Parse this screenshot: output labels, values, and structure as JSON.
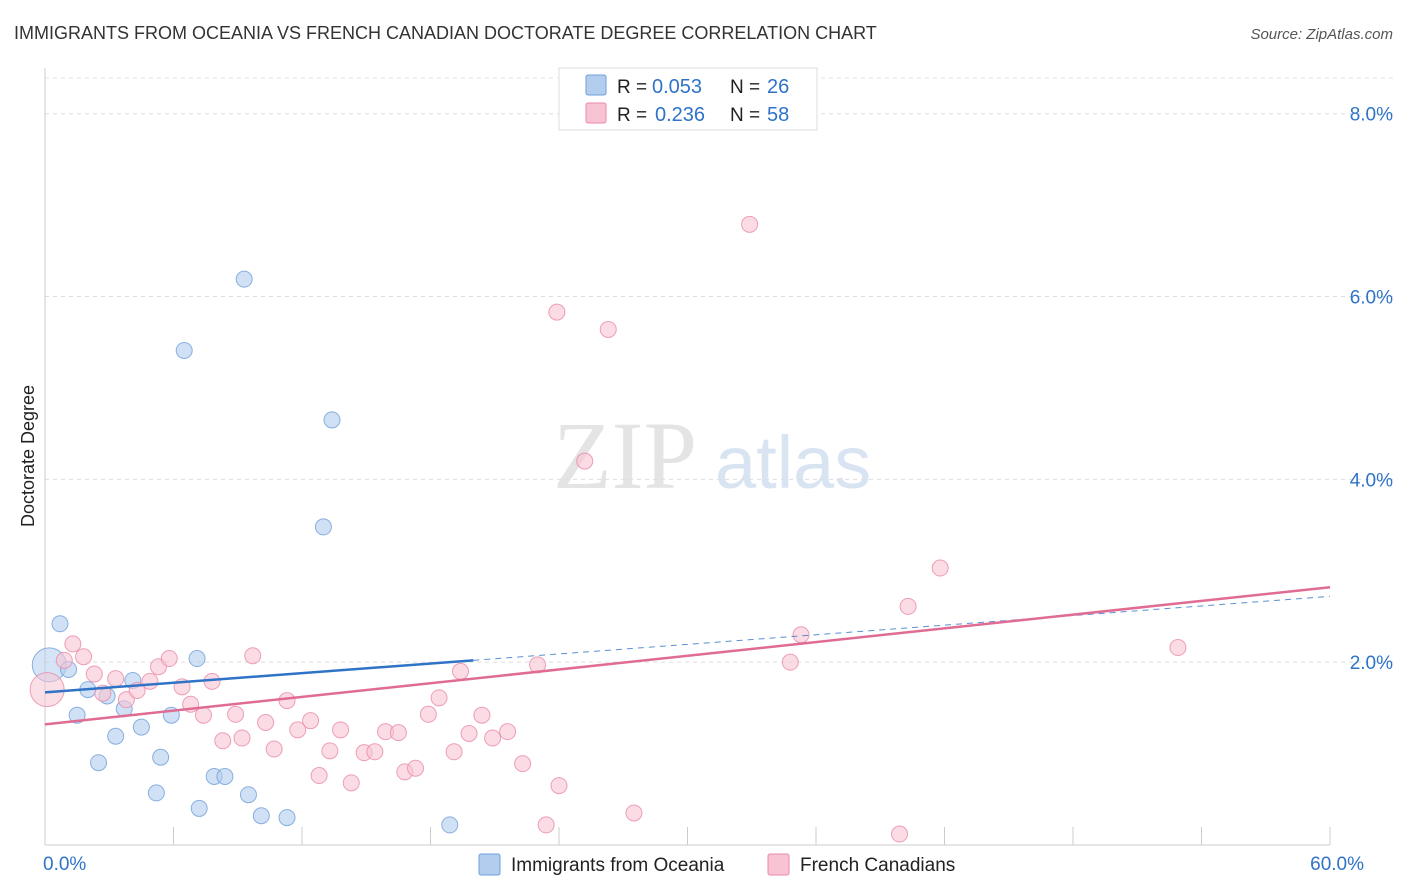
{
  "chart_data": {
    "type": "scatter",
    "title": "IMMIGRANTS FROM OCEANIA VS FRENCH CANADIAN DOCTORATE DEGREE CORRELATION CHART",
    "source": "Source: ZipAtlas.com",
    "xlabel": "",
    "ylabel": "Doctorate Degree",
    "xlim": [
      0,
      60
    ],
    "ylim": [
      0,
      8.5
    ],
    "x_tick_labels": [
      {
        "value": 0,
        "label": "0.0%"
      },
      {
        "value": 60,
        "label": "60.0%"
      }
    ],
    "x_minor_ticks": [
      0,
      6,
      12,
      18,
      24,
      30,
      36,
      42,
      48,
      54,
      60
    ],
    "y_ticks": [
      {
        "value": 2,
        "label": "2.0%"
      },
      {
        "value": 4,
        "label": "4.0%"
      },
      {
        "value": 6,
        "label": "6.0%"
      },
      {
        "value": 8,
        "label": "8.0%"
      }
    ],
    "watermark": {
      "zip": "ZIP",
      "atlas": "atlas"
    },
    "series": [
      {
        "name": "Immigrants from Oceania",
        "color": "#6f9fd8",
        "fill": "#b3cdef",
        "line_color": "#2f73c7",
        "r": "0.053",
        "n": "26",
        "trend": {
          "x0": 0,
          "y0": 1.67,
          "x1": 20,
          "y1": 2.02,
          "dash_to_x": 60,
          "dash_to_y": 2.72
        },
        "points": [
          [
            0.2,
            1.97
          ],
          [
            0.7,
            2.42
          ],
          [
            1.1,
            1.92
          ],
          [
            2.0,
            1.7
          ],
          [
            1.5,
            1.42
          ],
          [
            2.9,
            1.63
          ],
          [
            3.3,
            1.19
          ],
          [
            3.7,
            1.49
          ],
          [
            4.1,
            1.8
          ],
          [
            4.5,
            1.29
          ],
          [
            2.5,
            0.9
          ],
          [
            5.4,
            0.96
          ],
          [
            5.2,
            0.57
          ],
          [
            5.9,
            1.42
          ],
          [
            7.1,
            2.04
          ],
          [
            7.9,
            0.75
          ],
          [
            8.4,
            0.75
          ],
          [
            7.2,
            0.4
          ],
          [
            9.5,
            0.55
          ],
          [
            10.1,
            0.32
          ],
          [
            11.3,
            0.3
          ],
          [
            6.5,
            5.41
          ],
          [
            9.3,
            6.19
          ],
          [
            13.4,
            4.65
          ],
          [
            13.0,
            3.48
          ],
          [
            18.9,
            0.22
          ]
        ]
      },
      {
        "name": "French Canadians",
        "color": "#e88aa8",
        "fill": "#f8c4d4",
        "line_color": "#e06b93",
        "r": "0.236",
        "n": "58",
        "trend": {
          "x0": 0,
          "y0": 1.32,
          "x1": 60,
          "y1": 2.82
        },
        "points": [
          [
            0.1,
            1.7
          ],
          [
            0.9,
            2.02
          ],
          [
            1.3,
            2.2
          ],
          [
            1.8,
            2.06
          ],
          [
            2.3,
            1.87
          ],
          [
            2.7,
            1.66
          ],
          [
            3.3,
            1.82
          ],
          [
            3.8,
            1.59
          ],
          [
            4.3,
            1.69
          ],
          [
            4.9,
            1.79
          ],
          [
            5.3,
            1.95
          ],
          [
            5.8,
            2.04
          ],
          [
            6.4,
            1.73
          ],
          [
            6.8,
            1.54
          ],
          [
            7.4,
            1.42
          ],
          [
            7.8,
            1.79
          ],
          [
            8.3,
            1.14
          ],
          [
            8.9,
            1.43
          ],
          [
            9.2,
            1.17
          ],
          [
            9.7,
            2.07
          ],
          [
            10.3,
            1.34
          ],
          [
            10.7,
            1.05
          ],
          [
            11.3,
            1.58
          ],
          [
            11.8,
            1.26
          ],
          [
            12.4,
            1.36
          ],
          [
            12.8,
            0.76
          ],
          [
            13.3,
            1.03
          ],
          [
            13.8,
            1.26
          ],
          [
            14.3,
            0.68
          ],
          [
            14.9,
            1.01
          ],
          [
            15.4,
            1.02
          ],
          [
            15.9,
            1.24
          ],
          [
            16.5,
            1.23
          ],
          [
            16.8,
            0.8
          ],
          [
            17.3,
            0.84
          ],
          [
            17.9,
            1.43
          ],
          [
            18.4,
            1.61
          ],
          [
            19.1,
            1.02
          ],
          [
            19.4,
            1.9
          ],
          [
            19.8,
            1.22
          ],
          [
            20.4,
            1.42
          ],
          [
            20.9,
            1.17
          ],
          [
            21.6,
            1.24
          ],
          [
            22.3,
            0.89
          ],
          [
            23.0,
            1.97
          ],
          [
            23.4,
            0.22
          ],
          [
            24.0,
            0.65
          ],
          [
            23.9,
            5.83
          ],
          [
            25.2,
            4.2
          ],
          [
            26.3,
            5.64
          ],
          [
            27.5,
            0.35
          ],
          [
            32.9,
            6.79
          ],
          [
            35.3,
            2.3
          ],
          [
            34.8,
            2.0
          ],
          [
            39.9,
            0.12
          ],
          [
            40.3,
            2.61
          ],
          [
            41.8,
            3.03
          ],
          [
            52.9,
            2.16
          ]
        ]
      }
    ],
    "legend": {
      "position": "bottom-center",
      "entries": [
        "Immigrants from Oceania",
        "French Canadians"
      ]
    },
    "stats_box": {
      "position": "top-center",
      "r_label": "R =",
      "n_label": "N ="
    }
  }
}
